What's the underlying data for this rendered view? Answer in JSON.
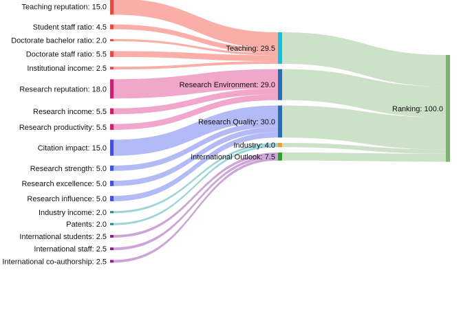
{
  "colors": {
    "teaching_link": "#f8a39b",
    "research_env_link": "#ee9bc4",
    "research_quality_link": "#aab0f5",
    "industry_link": "#8fcfd1",
    "international_link": "#c597d2",
    "ranking_link": "#c9dfc5"
  },
  "chart_data": {
    "type": "sankey",
    "source_nodes": [
      {
        "id": "teaching_reputation",
        "label": "Teaching reputation: 15.0",
        "value": 15.0,
        "target": "teaching",
        "color": "#f0463c"
      },
      {
        "id": "student_staff_ratio",
        "label": "Student staff ratio: 4.5",
        "value": 4.5,
        "target": "teaching",
        "color": "#f0463c"
      },
      {
        "id": "doctorate_bachelor_ratio",
        "label": "Doctorate bachelor ratio: 2.0",
        "value": 2.0,
        "target": "teaching",
        "color": "#f0463c"
      },
      {
        "id": "doctorate_staff_ratio",
        "label": "Doctorate staff ratio: 5.5",
        "value": 5.5,
        "target": "teaching",
        "color": "#f0463c"
      },
      {
        "id": "institutional_income",
        "label": "Institutional income: 2.5",
        "value": 2.5,
        "target": "teaching",
        "color": "#f0463c"
      },
      {
        "id": "research_reputation",
        "label": "Research reputation: 18.0",
        "value": 18.0,
        "target": "research_environment",
        "color": "#d81b72"
      },
      {
        "id": "research_income",
        "label": "Research income: 5.5",
        "value": 5.5,
        "target": "research_environment",
        "color": "#d81b72"
      },
      {
        "id": "research_productivity",
        "label": "Research productivity: 5.5",
        "value": 5.5,
        "target": "research_environment",
        "color": "#d81b72"
      },
      {
        "id": "citation_impact",
        "label": "Citation impact: 15.0",
        "value": 15.0,
        "target": "research_quality",
        "color": "#3f4fe8"
      },
      {
        "id": "research_strength",
        "label": "Research strength: 5.0",
        "value": 5.0,
        "target": "research_quality",
        "color": "#3f4fe8"
      },
      {
        "id": "research_excellence",
        "label": "Research excellence: 5.0",
        "value": 5.0,
        "target": "research_quality",
        "color": "#3f4fe8"
      },
      {
        "id": "research_influence",
        "label": "Research influence: 5.0",
        "value": 5.0,
        "target": "research_quality",
        "color": "#3f4fe8"
      },
      {
        "id": "industry_income",
        "label": "Industry income: 2.0",
        "value": 2.0,
        "target": "industry",
        "color": "#1f8a8d"
      },
      {
        "id": "patents",
        "label": "Patents: 2.0",
        "value": 2.0,
        "target": "industry",
        "color": "#1f8a8d"
      },
      {
        "id": "international_students",
        "label": "International students: 2.5",
        "value": 2.5,
        "target": "international_outlook",
        "color": "#8a1c8a"
      },
      {
        "id": "international_staff",
        "label": "International staff: 2.5",
        "value": 2.5,
        "target": "international_outlook",
        "color": "#8a1c8a"
      },
      {
        "id": "international_coauthorship",
        "label": "International co-authorship: 2.5",
        "value": 2.5,
        "target": "international_outlook",
        "color": "#8a1c8a"
      }
    ],
    "middle_nodes": [
      {
        "id": "teaching",
        "label": "Teaching: 29.5",
        "value": 29.5,
        "color": "#1bbcd6",
        "link_color_key": "teaching_link"
      },
      {
        "id": "research_environment",
        "label": "Research Environment: 29.0",
        "value": 29.0,
        "color": "#2b6cb0",
        "link_color_key": "research_env_link"
      },
      {
        "id": "research_quality",
        "label": "Research Quality: 30.0",
        "value": 30.0,
        "color": "#2b6cb0",
        "link_color_key": "research_quality_link"
      },
      {
        "id": "industry",
        "label": "Industry: 4.0",
        "value": 4.0,
        "color": "#f59a2b",
        "link_color_key": "industry_link"
      },
      {
        "id": "international_outlook",
        "label": "International Outlook: 7.5",
        "value": 7.5,
        "color": "#2ca02c",
        "link_color_key": "international_link"
      }
    ],
    "final_node": {
      "id": "ranking",
      "label": "Ranking: 100.0",
      "value": 100.0,
      "color": "#7bb56f"
    }
  }
}
